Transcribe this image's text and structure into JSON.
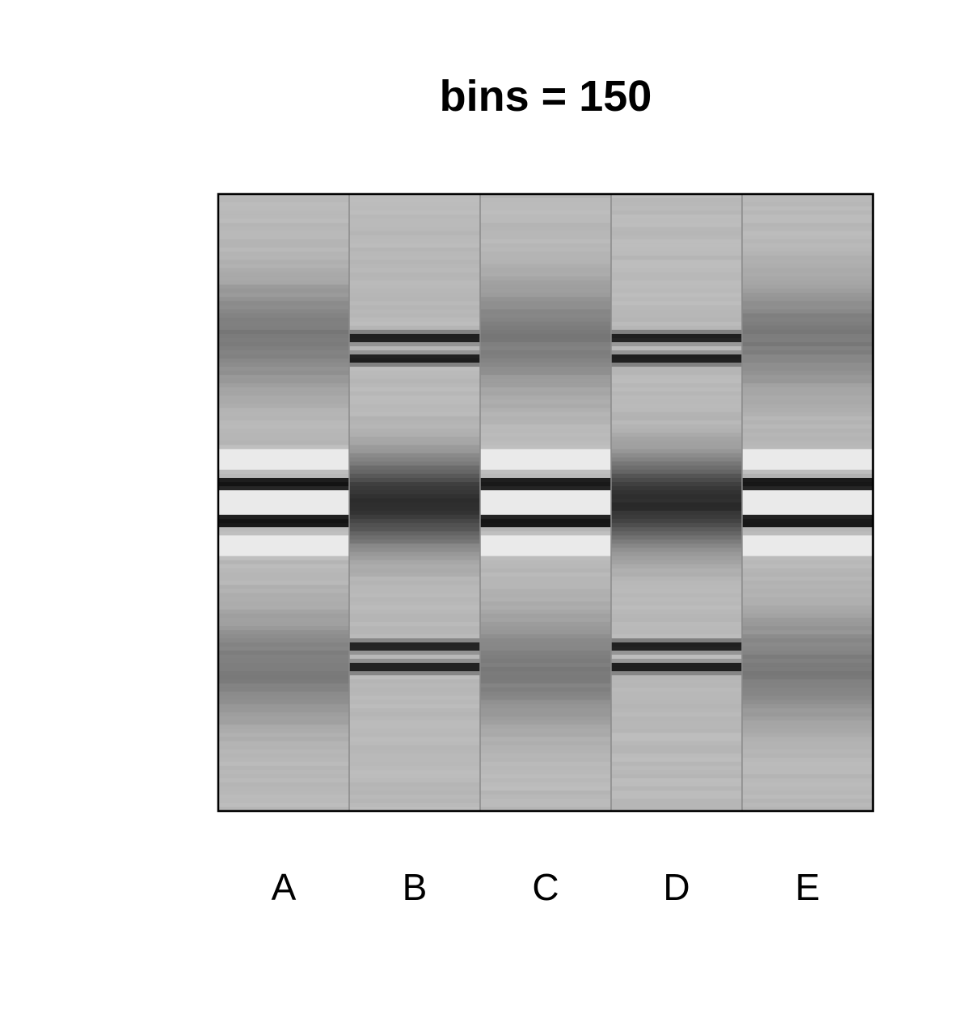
{
  "chart_data": {
    "type": "heatmap",
    "title": "bins = 150",
    "xlabel": "",
    "ylabel": "",
    "categories": [
      "A",
      "B",
      "C",
      "D",
      "E"
    ],
    "bins": 150,
    "y_range": [
      0,
      1
    ],
    "colormap": "grayscale",
    "grid": false,
    "legend": "none",
    "description_profiles": "intensity per bin, 0 = white, 1 = black",
    "series": [
      {
        "name": "A",
        "profile": "wide",
        "bands": [
          {
            "center": 0.23,
            "width": 0.06,
            "intensity": 0.5,
            "kind": "gauss"
          },
          {
            "center": 0.77,
            "width": 0.06,
            "intensity": 0.5,
            "kind": "gauss"
          },
          {
            "center": 0.47,
            "width": 0.006,
            "intensity": 0.95,
            "kind": "line"
          },
          {
            "center": 0.53,
            "width": 0.006,
            "intensity": 0.95,
            "kind": "line"
          },
          {
            "center": 0.43,
            "width": 0.01,
            "intensity": -0.35,
            "kind": "line"
          },
          {
            "center": 0.57,
            "width": 0.01,
            "intensity": -0.35,
            "kind": "line"
          },
          {
            "center": 0.5,
            "width": 0.012,
            "intensity": -0.4,
            "kind": "line"
          }
        ]
      },
      {
        "name": "B",
        "profile": "narrow",
        "bands": [
          {
            "center": 0.5,
            "width": 0.05,
            "intensity": 0.85,
            "kind": "gauss"
          },
          {
            "center": 0.233,
            "width": 0.006,
            "intensity": 0.9,
            "kind": "line"
          },
          {
            "center": 0.267,
            "width": 0.006,
            "intensity": 0.9,
            "kind": "line"
          },
          {
            "center": 0.733,
            "width": 0.006,
            "intensity": 0.9,
            "kind": "line"
          },
          {
            "center": 0.767,
            "width": 0.006,
            "intensity": 0.9,
            "kind": "line"
          }
        ]
      },
      {
        "name": "C",
        "profile": "wide",
        "bands": [
          {
            "center": 0.23,
            "width": 0.06,
            "intensity": 0.5,
            "kind": "gauss"
          },
          {
            "center": 0.77,
            "width": 0.06,
            "intensity": 0.5,
            "kind": "gauss"
          },
          {
            "center": 0.47,
            "width": 0.006,
            "intensity": 0.95,
            "kind": "line"
          },
          {
            "center": 0.53,
            "width": 0.006,
            "intensity": 0.95,
            "kind": "line"
          },
          {
            "center": 0.43,
            "width": 0.01,
            "intensity": -0.35,
            "kind": "line"
          },
          {
            "center": 0.57,
            "width": 0.01,
            "intensity": -0.35,
            "kind": "line"
          },
          {
            "center": 0.5,
            "width": 0.012,
            "intensity": -0.4,
            "kind": "line"
          }
        ]
      },
      {
        "name": "D",
        "profile": "narrow",
        "bands": [
          {
            "center": 0.5,
            "width": 0.05,
            "intensity": 0.85,
            "kind": "gauss"
          },
          {
            "center": 0.233,
            "width": 0.006,
            "intensity": 0.9,
            "kind": "line"
          },
          {
            "center": 0.267,
            "width": 0.006,
            "intensity": 0.9,
            "kind": "line"
          },
          {
            "center": 0.733,
            "width": 0.006,
            "intensity": 0.9,
            "kind": "line"
          },
          {
            "center": 0.767,
            "width": 0.006,
            "intensity": 0.9,
            "kind": "line"
          }
        ]
      },
      {
        "name": "E",
        "profile": "wide",
        "bands": [
          {
            "center": 0.23,
            "width": 0.06,
            "intensity": 0.5,
            "kind": "gauss"
          },
          {
            "center": 0.77,
            "width": 0.06,
            "intensity": 0.5,
            "kind": "gauss"
          },
          {
            "center": 0.47,
            "width": 0.006,
            "intensity": 0.95,
            "kind": "line"
          },
          {
            "center": 0.53,
            "width": 0.006,
            "intensity": 0.95,
            "kind": "line"
          },
          {
            "center": 0.43,
            "width": 0.01,
            "intensity": -0.35,
            "kind": "line"
          },
          {
            "center": 0.57,
            "width": 0.01,
            "intensity": -0.35,
            "kind": "line"
          },
          {
            "center": 0.5,
            "width": 0.012,
            "intensity": -0.4,
            "kind": "line"
          }
        ]
      }
    ]
  }
}
